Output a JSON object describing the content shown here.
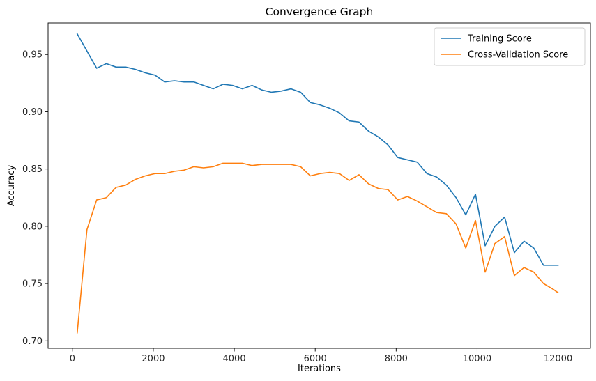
{
  "chart_data": {
    "type": "line",
    "title": "Convergence Graph",
    "xlabel": "Iterations",
    "ylabel": "Accuracy",
    "xlim": [
      -600,
      12800
    ],
    "ylim": [
      0.6935,
      0.9775
    ],
    "xticks": [
      0,
      2000,
      4000,
      6000,
      8000,
      10000,
      12000
    ],
    "yticks": [
      0.7,
      0.75,
      0.8,
      0.85,
      0.9,
      0.95
    ],
    "ytick_labels": [
      "0.70",
      "0.75",
      "0.80",
      "0.85",
      "0.90",
      "0.95"
    ],
    "grid": false,
    "legend_position": "upper right",
    "x": [
      120,
      360,
      600,
      840,
      1080,
      1320,
      1560,
      1800,
      2040,
      2280,
      2520,
      2760,
      3000,
      3240,
      3480,
      3720,
      3960,
      4200,
      4440,
      4680,
      4920,
      5160,
      5400,
      5640,
      5880,
      6120,
      6360,
      6600,
      6840,
      7080,
      7320,
      7560,
      7800,
      8040,
      8280,
      8520,
      8760,
      9000,
      9240,
      9480,
      9720,
      9960,
      10200,
      10440,
      10680,
      10920,
      11160,
      11400,
      11640,
      11880,
      12000
    ],
    "series": [
      {
        "name": "Training Score",
        "color": "#1f77b4",
        "values": [
          0.968,
          0.953,
          0.938,
          0.942,
          0.939,
          0.939,
          0.937,
          0.934,
          0.932,
          0.926,
          0.927,
          0.926,
          0.926,
          0.923,
          0.92,
          0.924,
          0.923,
          0.92,
          0.923,
          0.919,
          0.917,
          0.918,
          0.92,
          0.917,
          0.908,
          0.906,
          0.903,
          0.899,
          0.892,
          0.891,
          0.883,
          0.878,
          0.871,
          0.86,
          0.858,
          0.856,
          0.846,
          0.843,
          0.836,
          0.825,
          0.81,
          0.828,
          0.783,
          0.8,
          0.808,
          0.777,
          0.787,
          0.781,
          0.766,
          0.766,
          0.766
        ]
      },
      {
        "name": "Cross-Validation Score",
        "color": "#ff7f0e",
        "values": [
          0.707,
          0.797,
          0.823,
          0.825,
          0.834,
          0.836,
          0.841,
          0.844,
          0.846,
          0.846,
          0.848,
          0.849,
          0.852,
          0.851,
          0.852,
          0.855,
          0.855,
          0.855,
          0.853,
          0.854,
          0.854,
          0.854,
          0.854,
          0.852,
          0.844,
          0.846,
          0.847,
          0.846,
          0.84,
          0.845,
          0.837,
          0.833,
          0.832,
          0.823,
          0.826,
          0.822,
          0.817,
          0.812,
          0.811,
          0.802,
          0.781,
          0.805,
          0.76,
          0.785,
          0.791,
          0.757,
          0.764,
          0.76,
          0.75,
          0.745,
          0.742
        ]
      }
    ]
  }
}
